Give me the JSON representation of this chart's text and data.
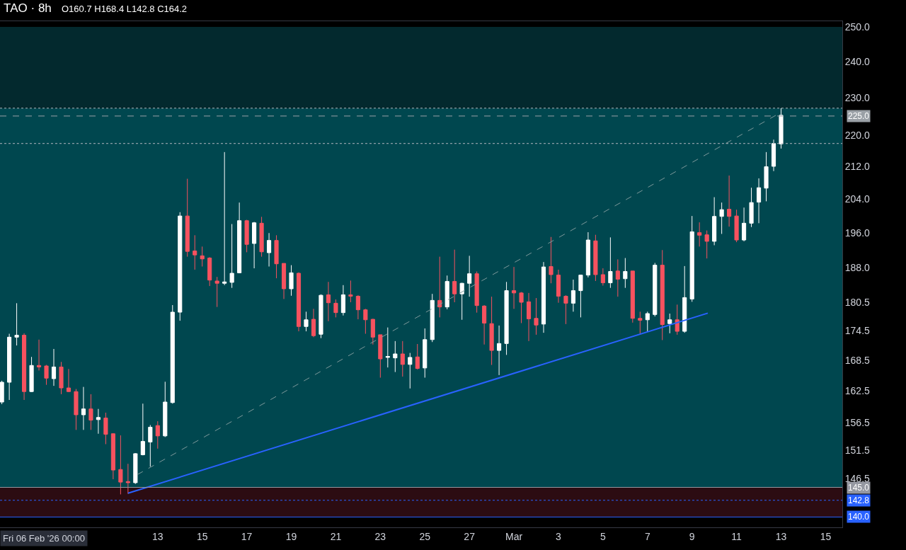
{
  "chart_data": {
    "type": "candlestick",
    "title": "TAO · 8h",
    "subtitle": "O160.7 H168.4 L142.8 C164.2",
    "annotations": [
      "Fri 06 Feb '26 00:00"
    ],
    "x": [
      "2026-02-06T00:00",
      "2026-02-06T08:00",
      "2026-02-06T16:00",
      "2026-02-07T00:00",
      "2026-02-07T08:00",
      "2026-02-07T16:00",
      "2026-02-08T00:00",
      "2026-02-08T08:00",
      "2026-02-08T16:00",
      "2026-02-09T00:00",
      "2026-02-09T08:00",
      "2026-02-09T16:00",
      "2026-02-10T00:00",
      "2026-02-10T08:00",
      "2026-02-10T16:00",
      "2026-02-11T00:00",
      "2026-02-11T08:00",
      "2026-02-11T16:00",
      "2026-02-12T00:00",
      "2026-02-12T08:00",
      "2026-02-12T16:00",
      "2026-02-13T00:00",
      "2026-02-13T08:00",
      "2026-02-13T16:00",
      "2026-02-14T00:00",
      "2026-02-14T08:00",
      "2026-02-14T16:00",
      "2026-02-15T00:00",
      "2026-02-15T08:00",
      "2026-02-15T16:00",
      "2026-02-16T00:00",
      "2026-02-16T08:00",
      "2026-02-16T16:00",
      "2026-02-17T00:00",
      "2026-02-17T08:00",
      "2026-02-17T16:00",
      "2026-02-18T00:00",
      "2026-02-18T08:00",
      "2026-02-18T16:00",
      "2026-02-19T00:00",
      "2026-02-19T08:00",
      "2026-02-19T16:00",
      "2026-02-20T00:00",
      "2026-02-20T08:00",
      "2026-02-20T16:00",
      "2026-02-21T00:00",
      "2026-02-21T08:00",
      "2026-02-21T16:00",
      "2026-02-22T00:00",
      "2026-02-22T08:00",
      "2026-02-22T16:00",
      "2026-02-23T00:00",
      "2026-02-23T08:00",
      "2026-02-23T16:00",
      "2026-02-24T00:00",
      "2026-02-24T08:00",
      "2026-02-24T16:00",
      "2026-02-25T00:00",
      "2026-02-25T08:00",
      "2026-02-25T16:00",
      "2026-02-26T00:00",
      "2026-02-26T08:00",
      "2026-02-26T16:00",
      "2026-02-27T00:00",
      "2026-02-27T08:00",
      "2026-02-27T16:00",
      "2026-02-28T00:00",
      "2026-02-28T08:00",
      "2026-02-28T16:00",
      "2026-03-01T00:00",
      "2026-03-01T08:00",
      "2026-03-01T16:00",
      "2026-03-02T00:00",
      "2026-03-02T08:00",
      "2026-03-02T16:00",
      "2026-03-03T00:00",
      "2026-03-03T08:00",
      "2026-03-03T16:00",
      "2026-03-04T00:00",
      "2026-03-04T08:00",
      "2026-03-04T16:00",
      "2026-03-05T00:00",
      "2026-03-05T08:00",
      "2026-03-05T16:00",
      "2026-03-06T00:00",
      "2026-03-06T08:00",
      "2026-03-06T16:00",
      "2026-03-07T00:00",
      "2026-03-07T08:00",
      "2026-03-07T16:00",
      "2026-03-08T00:00",
      "2026-03-08T08:00",
      "2026-03-08T16:00",
      "2026-03-09T00:00",
      "2026-03-09T08:00",
      "2026-03-09T16:00",
      "2026-03-10T00:00",
      "2026-03-10T08:00",
      "2026-03-10T16:00",
      "2026-03-11T00:00",
      "2026-03-11T08:00",
      "2026-03-11T16:00",
      "2026-03-12T00:00",
      "2026-03-12T08:00",
      "2026-03-12T16:00",
      "2026-03-13T00:00"
    ],
    "ohlc": [
      [
        160.4,
        164.5,
        160.0,
        164.2
      ],
      [
        164.2,
        173.9,
        160.8,
        173.2
      ],
      [
        173.2,
        180.3,
        171.5,
        173.6
      ],
      [
        173.6,
        174.0,
        160.8,
        162.4
      ],
      [
        162.4,
        169.2,
        162.3,
        167.5
      ],
      [
        167.5,
        172.7,
        166.5,
        167.2
      ],
      [
        167.4,
        167.6,
        163.7,
        165.0
      ],
      [
        164.9,
        170.8,
        163.5,
        167.2
      ],
      [
        167.2,
        168.2,
        161.9,
        163.1
      ],
      [
        163.1,
        166.8,
        162.3,
        162.4
      ],
      [
        162.4,
        162.9,
        155.2,
        158.0
      ],
      [
        158.0,
        163.3,
        155.2,
        159.1
      ],
      [
        159.1,
        161.9,
        155.2,
        157.0
      ],
      [
        157.1,
        159.1,
        154.5,
        157.5
      ],
      [
        157.4,
        158.4,
        152.6,
        154.4
      ],
      [
        154.5,
        154.6,
        146.4,
        148.0
      ],
      [
        148.1,
        154.2,
        143.8,
        145.9
      ],
      [
        146.0,
        149.1,
        143.9,
        145.8
      ],
      [
        145.8,
        151.0,
        145.6,
        150.9
      ],
      [
        150.7,
        160.1,
        150.6,
        153.1
      ],
      [
        153.0,
        156.1,
        148.6,
        155.7
      ],
      [
        156.0,
        156.8,
        151.8,
        154.1
      ],
      [
        154.1,
        164.3,
        153.9,
        160.4
      ],
      [
        160.3,
        179.9,
        160.1,
        178.4
      ],
      [
        178.4,
        200.8,
        176.6,
        199.9
      ],
      [
        199.9,
        208.9,
        190.5,
        191.7
      ],
      [
        191.8,
        195.4,
        187.6,
        190.9
      ],
      [
        190.7,
        192.8,
        188.3,
        190.0
      ],
      [
        190.2,
        190.4,
        184.0,
        185.3
      ],
      [
        185.1,
        186.0,
        179.5,
        184.6
      ],
      [
        184.6,
        215.6,
        184.2,
        184.9
      ],
      [
        184.8,
        198.0,
        183.6,
        186.8
      ],
      [
        186.9,
        203.1,
        186.8,
        198.8
      ],
      [
        198.8,
        199.0,
        191.5,
        193.3
      ],
      [
        193.5,
        198.5,
        187.9,
        198.3
      ],
      [
        198.2,
        199.7,
        190.5,
        191.6
      ],
      [
        191.4,
        195.9,
        188.3,
        194.2
      ],
      [
        194.2,
        195.4,
        185.7,
        188.9
      ],
      [
        189.0,
        189.0,
        181.2,
        183.4
      ],
      [
        183.4,
        188.6,
        181.9,
        186.9
      ],
      [
        186.8,
        187.0,
        174.4,
        175.4
      ],
      [
        175.4,
        178.5,
        174.4,
        176.8
      ],
      [
        176.9,
        179.1,
        173.2,
        173.5
      ],
      [
        173.8,
        182.2,
        173.0,
        182.0
      ],
      [
        182.1,
        184.9,
        176.5,
        180.4
      ],
      [
        180.3,
        181.1,
        177.3,
        178.3
      ],
      [
        178.3,
        184.2,
        177.7,
        182.1
      ],
      [
        182.1,
        185.2,
        180.5,
        181.8
      ],
      [
        181.8,
        182.0,
        176.9,
        178.9
      ],
      [
        178.9,
        179.1,
        173.9,
        176.8
      ],
      [
        176.9,
        177.0,
        171.7,
        173.2
      ],
      [
        173.7,
        173.7,
        165.1,
        168.8
      ],
      [
        169.1,
        175.2,
        167.1,
        169.3
      ],
      [
        169.0,
        172.4,
        166.2,
        169.8
      ],
      [
        169.8,
        172.4,
        165.3,
        167.7
      ],
      [
        167.7,
        170.0,
        163.0,
        169.1
      ],
      [
        169.2,
        171.8,
        166.7,
        166.9
      ],
      [
        167.0,
        175.0,
        165.1,
        172.7
      ],
      [
        172.7,
        182.3,
        172.2,
        180.9
      ],
      [
        180.9,
        190.5,
        177.3,
        179.5
      ],
      [
        179.5,
        186.3,
        179.0,
        185.0
      ],
      [
        185.0,
        192.1,
        180.5,
        182.3
      ],
      [
        182.3,
        184.7,
        176.8,
        184.6
      ],
      [
        184.6,
        190.7,
        181.7,
        186.7
      ],
      [
        186.7,
        187.2,
        178.3,
        179.8
      ],
      [
        179.7,
        179.9,
        171.7,
        176.1
      ],
      [
        176.0,
        181.7,
        167.6,
        170.5
      ],
      [
        170.5,
        175.6,
        165.6,
        171.9
      ],
      [
        171.9,
        184.9,
        169.6,
        183.0
      ],
      [
        183.0,
        188.2,
        179.1,
        182.5
      ],
      [
        182.5,
        182.7,
        176.1,
        180.5
      ],
      [
        180.6,
        182.5,
        172.4,
        177.0
      ],
      [
        177.1,
        181.4,
        173.7,
        175.7
      ],
      [
        175.9,
        189.3,
        174.1,
        188.2
      ],
      [
        188.3,
        195.0,
        184.6,
        186.5
      ],
      [
        186.4,
        187.6,
        180.4,
        181.8
      ],
      [
        181.8,
        182.0,
        175.9,
        180.3
      ],
      [
        180.3,
        185.4,
        178.5,
        183.0
      ],
      [
        183.0,
        186.5,
        177.3,
        186.4
      ],
      [
        186.4,
        196.1,
        185.9,
        194.3
      ],
      [
        194.1,
        195.5,
        185.1,
        186.5
      ],
      [
        186.5,
        187.9,
        184.1,
        184.7
      ],
      [
        184.7,
        194.9,
        183.6,
        187.2
      ],
      [
        187.3,
        189.9,
        181.7,
        185.5
      ],
      [
        185.6,
        190.2,
        183.6,
        187.2
      ],
      [
        187.3,
        187.3,
        176.2,
        177.1
      ],
      [
        177.1,
        178.5,
        173.9,
        176.7
      ],
      [
        176.8,
        178.5,
        174.4,
        178.1
      ],
      [
        177.9,
        189.1,
        177.5,
        188.6
      ],
      [
        188.6,
        192.0,
        172.6,
        175.8
      ],
      [
        176.0,
        178.1,
        174.0,
        176.8
      ],
      [
        176.8,
        180.0,
        173.7,
        174.4
      ],
      [
        174.4,
        188.4,
        174.1,
        181.5
      ],
      [
        181.2,
        199.9,
        180.6,
        196.2
      ],
      [
        196.0,
        198.4,
        192.8,
        195.4
      ],
      [
        195.5,
        196.5,
        190.1,
        194.0
      ],
      [
        194.0,
        204.4,
        193.1,
        199.8
      ],
      [
        199.8,
        203.1,
        195.7,
        201.4
      ],
      [
        201.5,
        209.7,
        197.4,
        199.8
      ],
      [
        199.9,
        201.4,
        193.8,
        194.3
      ],
      [
        194.3,
        201.9,
        194.0,
        198.2
      ],
      [
        198.2,
        206.7,
        197.3,
        203.1
      ],
      [
        203.2,
        209.0,
        198.2,
        206.7
      ],
      [
        206.6,
        215.6,
        203.4,
        211.9
      ],
      [
        212.0,
        218.8,
        210.8,
        217.8
      ],
      [
        217.7,
        227.1,
        216.5,
        225.2
      ]
    ],
    "colors": [
      "#ffffff",
      "#ffffff",
      "#ffffff",
      "#f7525f",
      "#ffffff",
      "#f7525f",
      "#f7525f",
      "#ffffff",
      "#f7525f",
      "#f7525f",
      "#f7525f",
      "#ffffff",
      "#f7525f",
      "#ffffff",
      "#f7525f",
      "#f7525f",
      "#f7525f",
      "#f7525f",
      "#ffffff",
      "#ffffff",
      "#ffffff",
      "#f7525f",
      "#ffffff",
      "#ffffff",
      "#ffffff",
      "#f7525f",
      "#f7525f",
      "#f7525f",
      "#f7525f",
      "#f7525f",
      "#ffffff",
      "#ffffff",
      "#ffffff",
      "#f7525f",
      "#ffffff",
      "#f7525f",
      "#ffffff",
      "#f7525f",
      "#f7525f",
      "#ffffff",
      "#f7525f",
      "#ffffff",
      "#f7525f",
      "#ffffff",
      "#f7525f",
      "#f7525f",
      "#ffffff",
      "#f7525f",
      "#f7525f",
      "#f7525f",
      "#f7525f",
      "#f7525f",
      "#ffffff",
      "#ffffff",
      "#f7525f",
      "#ffffff",
      "#f7525f",
      "#ffffff",
      "#ffffff",
      "#f7525f",
      "#ffffff",
      "#f7525f",
      "#ffffff",
      "#ffffff",
      "#f7525f",
      "#f7525f",
      "#f7525f",
      "#ffffff",
      "#ffffff",
      "#f7525f",
      "#f7525f",
      "#f7525f",
      "#f7525f",
      "#ffffff",
      "#f7525f",
      "#f7525f",
      "#f7525f",
      "#ffffff",
      "#ffffff",
      "#ffffff",
      "#f7525f",
      "#f7525f",
      "#ffffff",
      "#f7525f",
      "#ffffff",
      "#f7525f",
      "#f7525f",
      "#ffffff",
      "#ffffff",
      "#f7525f",
      "#ffffff",
      "#f7525f",
      "#ffffff",
      "#ffffff",
      "#f7525f",
      "#f7525f",
      "#ffffff",
      "#ffffff",
      "#f7525f",
      "#f7525f",
      "#ffffff",
      "#ffffff",
      "#ffffff",
      "#ffffff",
      "#ffffff",
      "#ffffff"
    ],
    "series": [
      {
        "type": "line",
        "x": [
          "2026-02-11T16:00",
          "2026-03-09T17:00"
        ],
        "values": [
          144.0,
          178.2
        ],
        "color": "#2962ff",
        "line_style": "solid"
      },
      {
        "type": "line",
        "x": [
          "2026-02-12T02:00",
          "2026-03-12T22:00"
        ],
        "values": [
          147.2,
          225.7
        ],
        "color": "#7f9a9c",
        "line_style": "dashed"
      }
    ],
    "bands": [
      {
        "axis": "y",
        "from": 145,
        "to": 227.1,
        "color": "#00474f"
      },
      {
        "axis": "y",
        "from": 227.1,
        "to": 250,
        "color": "#03292e"
      },
      {
        "axis": "y",
        "from": 140,
        "to": 145,
        "color": "#2c0c12"
      }
    ],
    "ref_lines": [
      {
        "axis": "y",
        "value": 225,
        "label": "225.0",
        "color": "#9aa0a6",
        "line_style": "dashed"
      },
      {
        "axis": "y",
        "value": 227.1,
        "color": "#b2b5be",
        "line_style": "dotted"
      },
      {
        "axis": "y",
        "value": 217.8,
        "color": "#b2b5be",
        "line_style": "dotted"
      },
      {
        "axis": "y",
        "value": 145,
        "label": "145.0",
        "color": "#9598a1",
        "line_style": "solid"
      },
      {
        "axis": "y",
        "value": 142.8,
        "label": "142.8",
        "color": "#2962ff",
        "line_style": "dotted"
      },
      {
        "axis": "y",
        "value": 140,
        "label": "140.0",
        "color": "#2962ff",
        "line_style": "solid"
      }
    ],
    "log": true,
    "ylim": [
      138.3,
      251.7
    ],
    "yticks": [
      {
        "value": 146.5,
        "label": "146.5"
      },
      {
        "value": 151.5,
        "label": "151.5"
      },
      {
        "value": 156.5,
        "label": "156.5"
      },
      {
        "value": 162.5,
        "label": "162.5"
      },
      {
        "value": 168.5,
        "label": "168.5"
      },
      {
        "value": 174.5,
        "label": "174.5"
      },
      {
        "value": 180.5,
        "label": "180.5"
      },
      {
        "value": 188,
        "label": "188.0"
      },
      {
        "value": 196,
        "label": "196.0"
      },
      {
        "value": 204,
        "label": "204.0"
      },
      {
        "value": 212,
        "label": "212.0"
      },
      {
        "value": 220,
        "label": "220.0"
      },
      {
        "value": 230,
        "label": "230.0"
      },
      {
        "value": 240,
        "label": "240.0"
      },
      {
        "value": 250,
        "label": "250.0"
      }
    ],
    "xlim": [
      "2026-02-05T22:00",
      "2026-03-15T18:00"
    ],
    "xticks": [
      {
        "value": "2026-02-13",
        "label": "13"
      },
      {
        "value": "2026-02-15",
        "label": "15"
      },
      {
        "value": "2026-02-17",
        "label": "17"
      },
      {
        "value": "2026-02-19",
        "label": "19"
      },
      {
        "value": "2026-02-21",
        "label": "21"
      },
      {
        "value": "2026-02-23",
        "label": "23"
      },
      {
        "value": "2026-02-25",
        "label": "25"
      },
      {
        "value": "2026-02-27",
        "label": "27"
      },
      {
        "value": "2026-03-01",
        "label": "Mar"
      },
      {
        "value": "2026-03-03",
        "label": "3"
      },
      {
        "value": "2026-03-05",
        "label": "5"
      },
      {
        "value": "2026-03-07",
        "label": "7"
      },
      {
        "value": "2026-03-09",
        "label": "9"
      },
      {
        "value": "2026-03-11",
        "label": "11"
      },
      {
        "value": "2026-03-13",
        "label": "13"
      },
      {
        "value": "2026-03-15",
        "label": "15"
      }
    ],
    "grid": false,
    "marker": "none"
  }
}
